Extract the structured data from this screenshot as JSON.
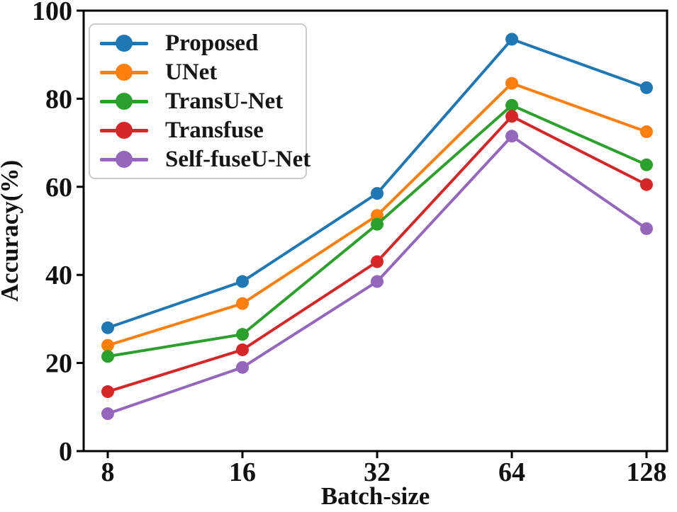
{
  "chart_data": {
    "type": "line",
    "title": "",
    "xlabel": "Batch-size",
    "ylabel": "Accuracy(%)",
    "x_categories": [
      "8",
      "16",
      "32",
      "64",
      "128"
    ],
    "y_ticks": [
      "0",
      "20",
      "40",
      "60",
      "80",
      "100"
    ],
    "y_tick_values": [
      0,
      20,
      40,
      60,
      80,
      100
    ],
    "ylim": [
      0,
      100
    ],
    "grid": false,
    "legend_position": "upper left",
    "axis_color": "#000000",
    "text_color": "#111111",
    "series": [
      {
        "name": "Proposed",
        "color": "#1f77b4",
        "values": [
          28,
          38.5,
          58.5,
          93.5,
          82.5
        ]
      },
      {
        "name": "UNet",
        "color": "#ff7f0e",
        "values": [
          24,
          33.5,
          53.5,
          83.5,
          72.5
        ]
      },
      {
        "name": "TransU-Net",
        "color": "#2ca02c",
        "values": [
          21.5,
          26.5,
          51.5,
          78.5,
          65
        ]
      },
      {
        "name": "Transfuse",
        "color": "#d62728",
        "values": [
          13.5,
          23,
          43,
          76,
          60.5
        ]
      },
      {
        "name": "Self-fuseU-Net",
        "color": "#9467bd",
        "values": [
          8.5,
          19,
          38.5,
          71.5,
          50.5
        ]
      }
    ]
  }
}
